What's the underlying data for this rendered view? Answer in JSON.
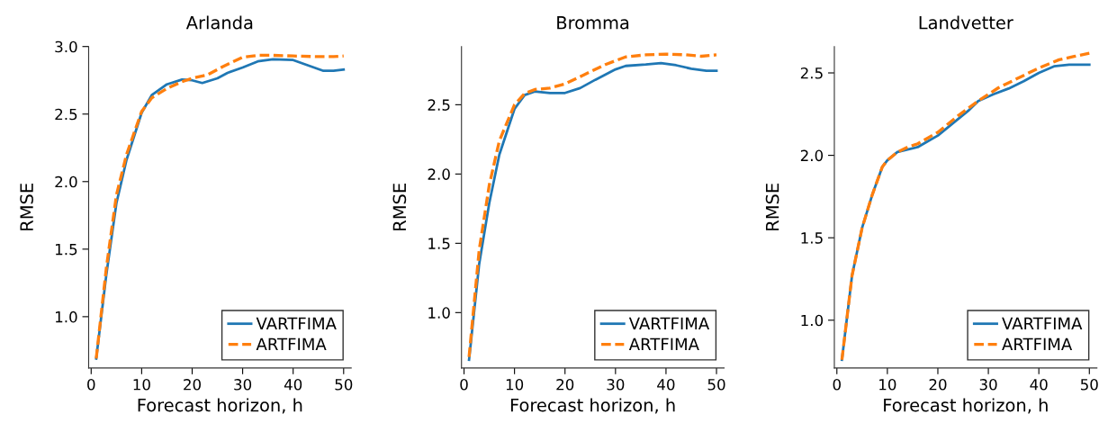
{
  "chart_data": [
    {
      "type": "line",
      "title": "Arlanda",
      "xlabel": "Forecast horizon, h",
      "ylabel": "RMSE",
      "xlim": [
        -0.5,
        51.5
      ],
      "ylim": [
        0.62,
        3.0
      ],
      "xticks": [
        0,
        10,
        20,
        30,
        40,
        50
      ],
      "yticks": [
        {
          "value": 1,
          "label": "1.0"
        },
        {
          "value": 1.5,
          "label": "1.5"
        },
        {
          "value": 2,
          "label": "2.0"
        },
        {
          "value": 2.5,
          "label": "2.5"
        },
        {
          "value": 3,
          "label": "3.0"
        }
      ],
      "grid": false,
      "legend": "bottom right",
      "series": [
        {
          "name": "VARTFIMA",
          "color": "#1f77b4",
          "line_style": "solid",
          "x": [
            1,
            3,
            5,
            7,
            10,
            12,
            15,
            18,
            20,
            22,
            25,
            27,
            30,
            33,
            36,
            40,
            43,
            46,
            48,
            50
          ],
          "values": [
            0.69,
            1.31,
            1.84,
            2.16,
            2.51,
            2.64,
            2.72,
            2.756,
            2.75,
            2.73,
            2.765,
            2.805,
            2.845,
            2.89,
            2.905,
            2.9,
            2.86,
            2.82,
            2.82,
            2.83
          ]
        },
        {
          "name": "ARTFIMA",
          "color": "#ff7f0e",
          "line_style": "dashed",
          "x": [
            1,
            3,
            5,
            7,
            10,
            12,
            15,
            18,
            20,
            23,
            26,
            30,
            33,
            36,
            40,
            45,
            48,
            50
          ],
          "values": [
            0.69,
            1.36,
            1.9,
            2.2,
            2.52,
            2.62,
            2.69,
            2.74,
            2.765,
            2.79,
            2.85,
            2.92,
            2.935,
            2.935,
            2.93,
            2.925,
            2.925,
            2.93
          ]
        }
      ]
    },
    {
      "type": "line",
      "title": "Bromma",
      "xlabel": "Forecast horizon, h",
      "ylabel": "RMSE",
      "xlim": [
        -0.5,
        51.5
      ],
      "ylim": [
        0.6,
        2.92
      ],
      "xticks": [
        0,
        10,
        20,
        30,
        40,
        50
      ],
      "yticks": [
        {
          "value": 1,
          "label": "1.0"
        },
        {
          "value": 1.5,
          "label": "1.5"
        },
        {
          "value": 2,
          "label": "2.0"
        },
        {
          "value": 2.5,
          "label": "2.5"
        }
      ],
      "grid": false,
      "legend": "bottom right",
      "series": [
        {
          "name": "VARTFIMA",
          "color": "#1f77b4",
          "line_style": "solid",
          "x": [
            1,
            3,
            5,
            7,
            10,
            12,
            14,
            17,
            20,
            23,
            26,
            30,
            32,
            36,
            39,
            42,
            45,
            48,
            50
          ],
          "values": [
            0.66,
            1.35,
            1.79,
            2.14,
            2.47,
            2.57,
            2.595,
            2.585,
            2.585,
            2.62,
            2.68,
            2.755,
            2.78,
            2.79,
            2.8,
            2.785,
            2.76,
            2.745,
            2.745
          ]
        },
        {
          "name": "ARTFIMA",
          "color": "#ff7f0e",
          "line_style": "dashed",
          "x": [
            1,
            3,
            5,
            7,
            10,
            12,
            14,
            17,
            20,
            24,
            28,
            32,
            36,
            40,
            44,
            47,
            50
          ],
          "values": [
            0.68,
            1.45,
            1.92,
            2.24,
            2.5,
            2.58,
            2.61,
            2.62,
            2.65,
            2.72,
            2.79,
            2.845,
            2.86,
            2.865,
            2.86,
            2.85,
            2.86
          ]
        }
      ]
    },
    {
      "type": "line",
      "title": "Landvetter",
      "xlabel": "Forecast horizon, h",
      "ylabel": "RMSE",
      "xlim": [
        -0.5,
        51.5
      ],
      "ylim": [
        0.71,
        2.66
      ],
      "xticks": [
        0,
        10,
        20,
        30,
        40,
        50
      ],
      "yticks": [
        {
          "value": 1,
          "label": "1.0"
        },
        {
          "value": 1.5,
          "label": "1.5"
        },
        {
          "value": 2,
          "label": "2.0"
        },
        {
          "value": 2.5,
          "label": "2.5"
        }
      ],
      "grid": false,
      "legend": "bottom right",
      "series": [
        {
          "name": "VARTFIMA",
          "color": "#1f77b4",
          "line_style": "solid",
          "x": [
            1,
            3,
            5,
            7,
            9,
            10,
            12,
            14,
            16,
            18,
            20,
            23,
            26,
            28,
            31,
            34,
            37,
            40,
            43,
            46,
            50
          ],
          "values": [
            0.76,
            1.27,
            1.56,
            1.76,
            1.93,
            1.97,
            2.02,
            2.035,
            2.05,
            2.085,
            2.12,
            2.195,
            2.27,
            2.33,
            2.37,
            2.405,
            2.45,
            2.5,
            2.54,
            2.55,
            2.55
          ]
        },
        {
          "name": "ARTFIMA",
          "color": "#ff7f0e",
          "line_style": "dashed",
          "x": [
            1,
            3,
            5,
            7,
            9,
            10,
            12,
            14,
            16,
            20,
            24,
            28,
            32,
            36,
            40,
            44,
            47,
            50
          ],
          "values": [
            0.76,
            1.27,
            1.56,
            1.76,
            1.93,
            1.97,
            2.02,
            2.05,
            2.07,
            2.14,
            2.24,
            2.33,
            2.41,
            2.47,
            2.53,
            2.58,
            2.6,
            2.62
          ]
        }
      ]
    }
  ]
}
